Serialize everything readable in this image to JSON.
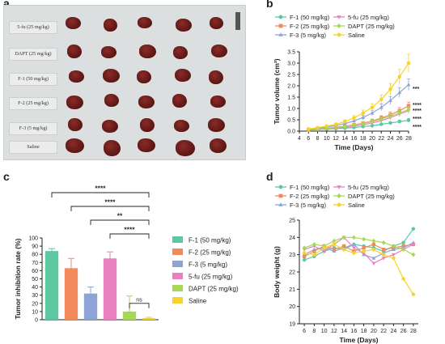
{
  "panel_letters": {
    "a": "a",
    "b": "b",
    "c": "c",
    "d": "d"
  },
  "photo": {
    "row_labels": [
      "5-fu (25 mg/kg)",
      "DAPT (25 mg/kg)",
      "F-1 (50 mg/kg)",
      "F-2 (25 mg/kg)",
      "F-3 (5 mg/kg)",
      "Saline"
    ],
    "tumor_color": "#6b1f1c",
    "background_color": "#dcdfe0"
  },
  "chart_data": [
    {
      "id": "b",
      "type": "line",
      "xlabel": "Time (Days)",
      "ylabel": "Tumor volume (cm³)",
      "xlim": [
        4,
        28
      ],
      "ylim": [
        0,
        3.5
      ],
      "xticks": [
        4,
        6,
        8,
        10,
        12,
        14,
        16,
        18,
        20,
        22,
        24,
        26,
        28
      ],
      "yticks": [
        0,
        0.5,
        1.0,
        1.5,
        2.0,
        2.5,
        3.0,
        3.5
      ],
      "x": [
        6,
        8,
        10,
        12,
        14,
        16,
        18,
        20,
        22,
        24,
        26,
        28
      ],
      "legend_position": "top",
      "series": [
        {
          "name": "F-1 (50 mg/kg)",
          "color": "#5cc8a0",
          "marker": "circle",
          "values": [
            0.05,
            0.07,
            0.09,
            0.11,
            0.13,
            0.16,
            0.2,
            0.24,
            0.3,
            0.36,
            0.42,
            0.48
          ],
          "errors": [
            0.02,
            0.02,
            0.02,
            0.03,
            0.03,
            0.04,
            0.04,
            0.05,
            0.05,
            0.06,
            0.07,
            0.08
          ]
        },
        {
          "name": "F-2 (25 mg/kg)",
          "color": "#f28a5c",
          "marker": "square",
          "values": [
            0.06,
            0.09,
            0.13,
            0.17,
            0.22,
            0.28,
            0.35,
            0.45,
            0.58,
            0.72,
            0.9,
            1.12
          ],
          "errors": [
            0.02,
            0.03,
            0.03,
            0.04,
            0.05,
            0.06,
            0.07,
            0.08,
            0.1,
            0.12,
            0.14,
            0.16
          ]
        },
        {
          "name": "F-3 (5 mg/kg)",
          "color": "#8ea4d6",
          "marker": "triangle",
          "values": [
            0.08,
            0.12,
            0.18,
            0.25,
            0.33,
            0.45,
            0.6,
            0.8,
            1.05,
            1.35,
            1.7,
            2.05
          ],
          "errors": [
            0.02,
            0.03,
            0.04,
            0.05,
            0.06,
            0.08,
            0.1,
            0.12,
            0.15,
            0.18,
            0.22,
            0.25
          ]
        },
        {
          "name": "5-fu (25 mg/kg)",
          "color": "#ea80c0",
          "marker": "triangle-down",
          "values": [
            0.06,
            0.08,
            0.1,
            0.13,
            0.17,
            0.22,
            0.28,
            0.36,
            0.46,
            0.6,
            0.75,
            0.9
          ],
          "errors": [
            0.02,
            0.02,
            0.03,
            0.03,
            0.04,
            0.05,
            0.06,
            0.07,
            0.08,
            0.1,
            0.11,
            0.12
          ]
        },
        {
          "name": "DAPT (25 mg/kg)",
          "color": "#a6d854",
          "marker": "diamond",
          "values": [
            0.06,
            0.09,
            0.12,
            0.16,
            0.2,
            0.26,
            0.33,
            0.42,
            0.53,
            0.66,
            0.8,
            0.95
          ],
          "errors": [
            0.02,
            0.02,
            0.03,
            0.04,
            0.04,
            0.05,
            0.06,
            0.07,
            0.08,
            0.1,
            0.12,
            0.13
          ]
        },
        {
          "name": "Saline",
          "color": "#f5d327",
          "marker": "circle",
          "values": [
            0.1,
            0.15,
            0.22,
            0.3,
            0.42,
            0.58,
            0.8,
            1.05,
            1.4,
            1.85,
            2.4,
            3.0
          ],
          "errors": [
            0.03,
            0.04,
            0.05,
            0.06,
            0.08,
            0.1,
            0.13,
            0.16,
            0.2,
            0.25,
            0.32,
            0.4
          ]
        }
      ],
      "annotations": [
        "***",
        "****",
        "****",
        "****",
        "****"
      ]
    },
    {
      "id": "c",
      "type": "bar",
      "ylabel": "Tumor inhibition rate (%)",
      "ylim": [
        0,
        100
      ],
      "yticks": [
        0,
        10,
        20,
        30,
        40,
        50,
        60,
        70,
        80,
        90,
        100
      ],
      "categories": [
        "F-1 (50 mg/kg)",
        "F-2 (25 mg/kg)",
        "F-3 (5 mg/kg)",
        "5-fu (25 mg/kg)",
        "DAPT (25 mg/kg)",
        "Saline"
      ],
      "values": [
        84,
        63,
        32,
        75,
        10,
        2
      ],
      "errors": [
        3,
        12,
        8,
        8,
        19,
        1
      ],
      "colors": [
        "#5cc8a0",
        "#f28a5c",
        "#8ea4d6",
        "#ea80c0",
        "#a6d854",
        "#f5d327"
      ],
      "legend_position": "right",
      "significance": [
        {
          "from": 0,
          "to": 5,
          "label": "****"
        },
        {
          "from": 1,
          "to": 5,
          "label": "****"
        },
        {
          "from": 2,
          "to": 5,
          "label": "**"
        },
        {
          "from": 3,
          "to": 5,
          "label": "****"
        },
        {
          "from": 4,
          "to": 5,
          "label": "ns"
        }
      ]
    },
    {
      "id": "d",
      "type": "line",
      "xlabel": "Time (Days)",
      "ylabel": "Body weight (g)",
      "xlim": [
        5,
        29
      ],
      "ylim": [
        19,
        25
      ],
      "xticks": [
        6,
        8,
        10,
        12,
        14,
        16,
        18,
        20,
        22,
        24,
        26,
        28
      ],
      "yticks": [
        19,
        20,
        21,
        22,
        23,
        24,
        25
      ],
      "x": [
        6,
        8,
        10,
        12,
        14,
        16,
        18,
        20,
        22,
        24,
        26,
        28
      ],
      "legend_position": "top",
      "series": [
        {
          "name": "F-1 (50 mg/kg)",
          "color": "#5cc8a0",
          "marker": "circle",
          "values": [
            22.7,
            22.9,
            23.2,
            23.4,
            23.3,
            23.6,
            23.5,
            23.4,
            23.2,
            23.5,
            23.7,
            24.5
          ]
        },
        {
          "name": "F-2 (25 mg/kg)",
          "color": "#f28a5c",
          "marker": "square",
          "values": [
            22.9,
            23.2,
            23.5,
            23.3,
            23.5,
            23.2,
            23.4,
            23.6,
            23.3,
            23.4,
            23.5,
            23.6
          ]
        },
        {
          "name": "F-3 (5 mg/kg)",
          "color": "#8ea4d6",
          "marker": "triangle",
          "values": [
            23.0,
            23.3,
            23.4,
            23.2,
            23.4,
            23.6,
            23.0,
            22.8,
            23.1,
            23.3,
            23.4,
            23.7
          ]
        },
        {
          "name": "5-fu (25 mg/kg)",
          "color": "#ea80c0",
          "marker": "triangle-down",
          "values": [
            23.3,
            23.5,
            23.2,
            23.6,
            24.0,
            23.4,
            23.1,
            22.5,
            22.8,
            23.0,
            23.3,
            23.6
          ]
        },
        {
          "name": "DAPT (25 mg/kg)",
          "color": "#a6d854",
          "marker": "diamond",
          "values": [
            23.4,
            23.6,
            23.5,
            23.8,
            24.0,
            24.0,
            23.9,
            23.8,
            23.7,
            23.5,
            23.3,
            23.0
          ]
        },
        {
          "name": "Saline",
          "color": "#f5d327",
          "marker": "circle",
          "values": [
            23.1,
            23.0,
            23.4,
            23.6,
            23.3,
            23.1,
            23.2,
            23.3,
            23.0,
            22.8,
            21.6,
            20.7
          ]
        }
      ]
    }
  ]
}
